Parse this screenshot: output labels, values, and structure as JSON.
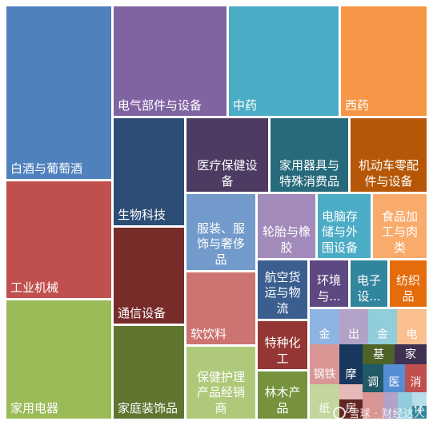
{
  "chart_data": {
    "type": "treemap",
    "cells": [
      {
        "label": "白酒与葡萄酒",
        "color": "#4f81bd"
      },
      {
        "label": "工业机械",
        "color": "#c0504d"
      },
      {
        "label": "家用电器",
        "color": "#9bbb59"
      },
      {
        "label": "电气部件与设备",
        "color": "#8064a2"
      },
      {
        "label": "中药",
        "color": "#4bacc6"
      },
      {
        "label": "西药",
        "color": "#f79646"
      },
      {
        "label": "生物科技",
        "color": "#2c4d75"
      },
      {
        "label": "通信设备",
        "color": "#772c2a"
      },
      {
        "label": "家庭装饰品",
        "color": "#5f7530"
      },
      {
        "label": "医疗保健设备",
        "color": "#4d3b62"
      },
      {
        "label": "家用器具与特殊消费品",
        "color": "#276a7c"
      },
      {
        "label": "机动车零配件与设备",
        "color": "#b65708"
      },
      {
        "label": "服装、服饰与奢侈品",
        "color": "#729aca"
      },
      {
        "label": "轮胎与橡胶",
        "color": "#a28bba"
      },
      {
        "label": "电脑存储与外围设备",
        "color": "#4bacc6"
      },
      {
        "label": "食品加工与肉类",
        "color": "#f9ab6b"
      },
      {
        "label": "软饮料",
        "color": "#cd7371"
      },
      {
        "label": "航空货运与物流",
        "color": "#3a5f8f"
      },
      {
        "label": "环境与...",
        "color": "#5e4881"
      },
      {
        "label": "电子设...",
        "color": "#31859c"
      },
      {
        "label": "纺织品",
        "color": "#e46c0a"
      },
      {
        "label": "特种化工",
        "color": "#943634"
      },
      {
        "label": "保健护理产品经销商",
        "color": "#afc97a"
      },
      {
        "label": "林木产品",
        "color": "#76923c"
      },
      {
        "label": "金",
        "color": "#8eb4e3"
      },
      {
        "label": "出",
        "color": "#b3a2c7"
      },
      {
        "label": "金",
        "color": "#92cddc"
      },
      {
        "label": "电",
        "color": "#fac090"
      },
      {
        "label": "钢铁",
        "color": "#d99694"
      },
      {
        "label": "摩",
        "color": "#17375e"
      },
      {
        "label": "基",
        "color": "#4f6228"
      },
      {
        "label": "家",
        "color": "#3f3151"
      },
      {
        "label": "纸",
        "color": "#c3d69b"
      },
      {
        "label": "",
        "color": "#e6b9b8"
      },
      {
        "label": "房",
        "color": "#632523"
      },
      {
        "label": "调",
        "color": "#215967"
      },
      {
        "label": "医",
        "color": "#558ed5"
      },
      {
        "label": "消",
        "color": "#c0504d"
      },
      {
        "label": "",
        "color": "#d99694"
      },
      {
        "label": "",
        "color": "#b3a2c7"
      },
      {
        "label": "",
        "color": "#93cddd"
      },
      {
        "label": "",
        "color": "#b7dee8"
      },
      {
        "label": "体",
        "color": "#31859c"
      }
    ]
  },
  "watermark": {
    "text": "雪球 · 财经达人"
  }
}
